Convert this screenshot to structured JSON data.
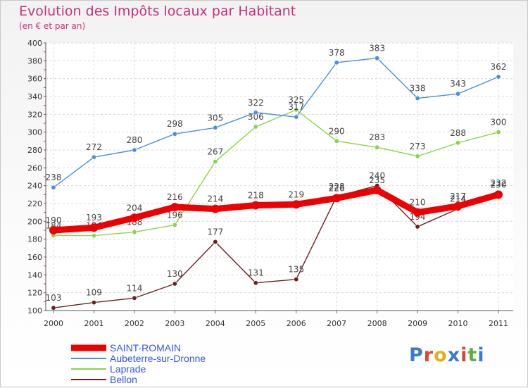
{
  "title": "Evolution des Impôts locaux par Habitant",
  "subtitle": "(en € et par an)",
  "logo_text": "Proxiti",
  "chart_data": {
    "type": "line",
    "x": [
      "2000",
      "2001",
      "2002",
      "2003",
      "2004",
      "2005",
      "2006",
      "2007",
      "2008",
      "2009",
      "2010",
      "2011"
    ],
    "ylim": [
      100,
      400
    ],
    "yticks": [
      100,
      120,
      140,
      160,
      180,
      200,
      220,
      240,
      260,
      280,
      300,
      320,
      340,
      360,
      380,
      400
    ],
    "grid": true,
    "legend_position": "bottom-left",
    "series": [
      {
        "name": "SAINT-ROMAIN",
        "color": "#ee0000",
        "values": [
          190,
          193,
          204,
          216,
          214,
          218,
          219,
          226,
          235,
          210,
          217,
          230
        ]
      },
      {
        "name": "Aubeterre-sur-Dronne",
        "color": "#4a90d9",
        "values": [
          238,
          272,
          280,
          298,
          305,
          322,
          317,
          378,
          383,
          338,
          343,
          362
        ]
      },
      {
        "name": "Laprade",
        "color": "#88d44a",
        "values": [
          184,
          184,
          188,
          196,
          267,
          306,
          325,
          290,
          283,
          273,
          288,
          300
        ]
      },
      {
        "name": "Bellon",
        "color": "#6b1f1f",
        "values": [
          103,
          109,
          114,
          130,
          177,
          131,
          135,
          228,
          240,
          194,
          214,
          232
        ]
      }
    ]
  }
}
